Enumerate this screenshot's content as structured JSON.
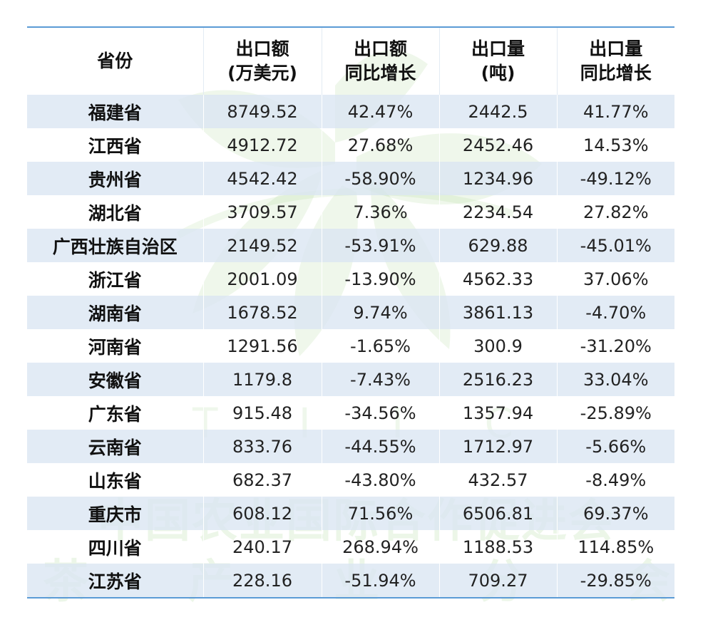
{
  "table": {
    "headers": [
      {
        "line1": "省份",
        "line2": ""
      },
      {
        "line1": "出口额",
        "line2": "(万美元)"
      },
      {
        "line1": "出口额",
        "line2": "同比增长"
      },
      {
        "line1": "出口量",
        "line2": "(吨)"
      },
      {
        "line1": "出口量",
        "line2": "同比增长"
      }
    ],
    "rows": [
      [
        "福建省",
        "8749.52",
        "42.47%",
        "2442.5",
        "41.77%"
      ],
      [
        "江西省",
        "4912.72",
        "27.68%",
        "2452.46",
        "14.53%"
      ],
      [
        "贵州省",
        "4542.42",
        "-58.90%",
        "1234.96",
        "-49.12%"
      ],
      [
        "湖北省",
        "3709.57",
        "7.36%",
        "2234.54",
        "27.82%"
      ],
      [
        "广西壮族自治区",
        "2149.52",
        "-53.91%",
        "629.88",
        "-45.01%"
      ],
      [
        "浙江省",
        "2001.09",
        "-13.90%",
        "4562.33",
        "37.06%"
      ],
      [
        "湖南省",
        "1678.52",
        "9.74%",
        "3861.13",
        "-4.70%"
      ],
      [
        "河南省",
        "1291.56",
        "-1.65%",
        "300.9",
        "-31.20%"
      ],
      [
        "安徽省",
        "1179.8",
        "-7.43%",
        "2516.23",
        "33.04%"
      ],
      [
        "广东省",
        "915.48",
        "-34.56%",
        "1357.94",
        "-25.89%"
      ],
      [
        "云南省",
        "833.76",
        "-44.55%",
        "1712.97",
        "-5.66%"
      ],
      [
        "山东省",
        "682.37",
        "-43.80%",
        "432.57",
        "-8.49%"
      ],
      [
        "重庆市",
        "608.12",
        "71.56%",
        "6506.81",
        "69.37%"
      ],
      [
        "四川省",
        "240.17",
        "268.94%",
        "1188.53",
        "114.85%"
      ],
      [
        "江苏省",
        "228.16",
        "-51.94%",
        "709.27",
        "-29.85%"
      ]
    ]
  },
  "watermark": {
    "letters": [
      "T",
      "I",
      "I",
      "C"
    ],
    "line1": "中国农业国际合作促进会",
    "line2": [
      "茶",
      "产",
      "业",
      "分",
      "会"
    ]
  },
  "colors": {
    "rule": "#5b9bd5",
    "stripe": "#dae5f2",
    "watermark": "#78be5f"
  }
}
